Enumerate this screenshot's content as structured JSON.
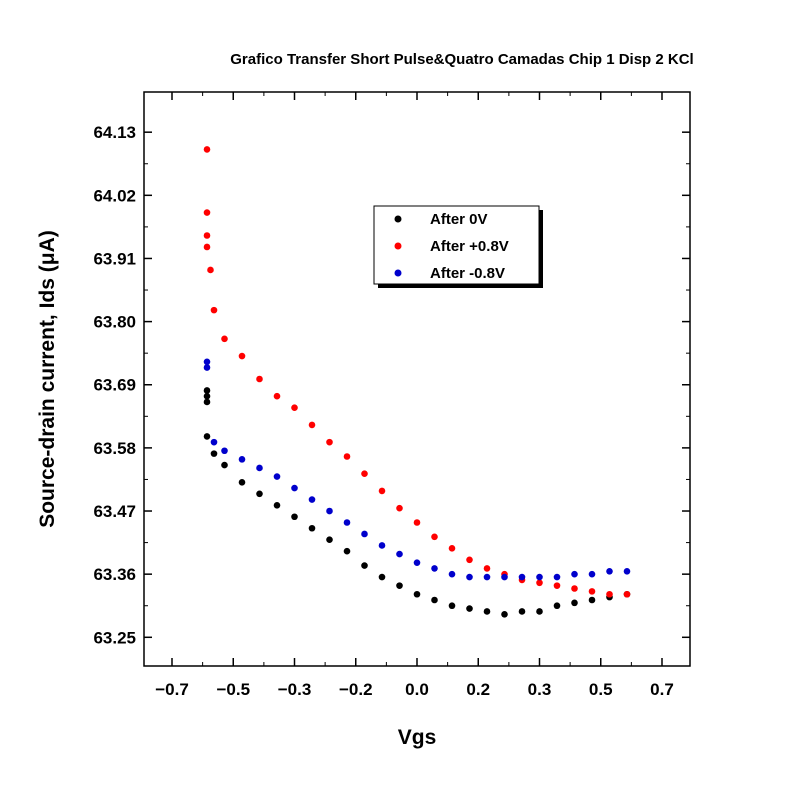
{
  "chart_data": {
    "type": "scatter",
    "title": "Grafico Transfer Short Pulse&Quatro Camadas Chip 1 Disp 2 KCl",
    "xlabel": "Vgs",
    "ylabel": "Source-drain current, Ids (μA)",
    "xlim": [
      -0.78,
      0.78
    ],
    "ylim": [
      63.2,
      64.2
    ],
    "x_tick_labels": [
      "−0.7",
      "−0.5",
      "−0.3",
      "−0.2",
      "0.0",
      "0.2",
      "0.3",
      "0.5",
      "0.7"
    ],
    "y_ticks": [
      64.13,
      64.02,
      63.91,
      63.8,
      63.69,
      63.58,
      63.47,
      63.36,
      63.25
    ],
    "grid": false,
    "legend_position": "upper-center",
    "series": [
      {
        "name": "After 0V",
        "color": "#000000",
        "points": [
          [
            -0.6,
            63.6
          ],
          [
            -0.6,
            63.68
          ],
          [
            -0.6,
            63.67
          ],
          [
            -0.6,
            63.66
          ],
          [
            -0.58,
            63.57
          ],
          [
            -0.55,
            63.55
          ],
          [
            -0.5,
            63.52
          ],
          [
            -0.45,
            63.5
          ],
          [
            -0.4,
            63.48
          ],
          [
            -0.35,
            63.46
          ],
          [
            -0.3,
            63.44
          ],
          [
            -0.25,
            63.42
          ],
          [
            -0.2,
            63.4
          ],
          [
            -0.15,
            63.375
          ],
          [
            -0.1,
            63.355
          ],
          [
            -0.05,
            63.34
          ],
          [
            0.0,
            63.325
          ],
          [
            0.05,
            63.315
          ],
          [
            0.1,
            63.305
          ],
          [
            0.15,
            63.3
          ],
          [
            0.2,
            63.295
          ],
          [
            0.25,
            63.29
          ],
          [
            0.3,
            63.295
          ],
          [
            0.35,
            63.295
          ],
          [
            0.4,
            63.305
          ],
          [
            0.45,
            63.31
          ],
          [
            0.5,
            63.315
          ],
          [
            0.55,
            63.32
          ],
          [
            0.6,
            63.325
          ]
        ]
      },
      {
        "name": "After +0.8V",
        "color": "#ff0000",
        "points": [
          [
            -0.6,
            64.1
          ],
          [
            -0.6,
            63.99
          ],
          [
            -0.6,
            63.95
          ],
          [
            -0.6,
            63.93
          ],
          [
            -0.59,
            63.89
          ],
          [
            -0.58,
            63.82
          ],
          [
            -0.55,
            63.77
          ],
          [
            -0.5,
            63.74
          ],
          [
            -0.45,
            63.7
          ],
          [
            -0.4,
            63.67
          ],
          [
            -0.35,
            63.65
          ],
          [
            -0.3,
            63.62
          ],
          [
            -0.25,
            63.59
          ],
          [
            -0.2,
            63.565
          ],
          [
            -0.15,
            63.535
          ],
          [
            -0.1,
            63.505
          ],
          [
            -0.05,
            63.475
          ],
          [
            0.0,
            63.45
          ],
          [
            0.05,
            63.425
          ],
          [
            0.1,
            63.405
          ],
          [
            0.15,
            63.385
          ],
          [
            0.2,
            63.37
          ],
          [
            0.25,
            63.36
          ],
          [
            0.3,
            63.35
          ],
          [
            0.35,
            63.345
          ],
          [
            0.4,
            63.34
          ],
          [
            0.45,
            63.335
          ],
          [
            0.5,
            63.33
          ],
          [
            0.55,
            63.325
          ],
          [
            0.6,
            63.325
          ]
        ]
      },
      {
        "name": "After -0.8V",
        "color": "#0000cc",
        "points": [
          [
            -0.6,
            63.73
          ],
          [
            -0.6,
            63.72
          ],
          [
            -0.58,
            63.59
          ],
          [
            -0.55,
            63.575
          ],
          [
            -0.5,
            63.56
          ],
          [
            -0.45,
            63.545
          ],
          [
            -0.4,
            63.53
          ],
          [
            -0.35,
            63.51
          ],
          [
            -0.3,
            63.49
          ],
          [
            -0.25,
            63.47
          ],
          [
            -0.2,
            63.45
          ],
          [
            -0.15,
            63.43
          ],
          [
            -0.1,
            63.41
          ],
          [
            -0.05,
            63.395
          ],
          [
            0.0,
            63.38
          ],
          [
            0.05,
            63.37
          ],
          [
            0.1,
            63.36
          ],
          [
            0.15,
            63.355
          ],
          [
            0.2,
            63.355
          ],
          [
            0.25,
            63.355
          ],
          [
            0.3,
            63.355
          ],
          [
            0.35,
            63.355
          ],
          [
            0.4,
            63.355
          ],
          [
            0.45,
            63.36
          ],
          [
            0.5,
            63.36
          ],
          [
            0.55,
            63.365
          ],
          [
            0.6,
            63.365
          ]
        ]
      }
    ]
  }
}
